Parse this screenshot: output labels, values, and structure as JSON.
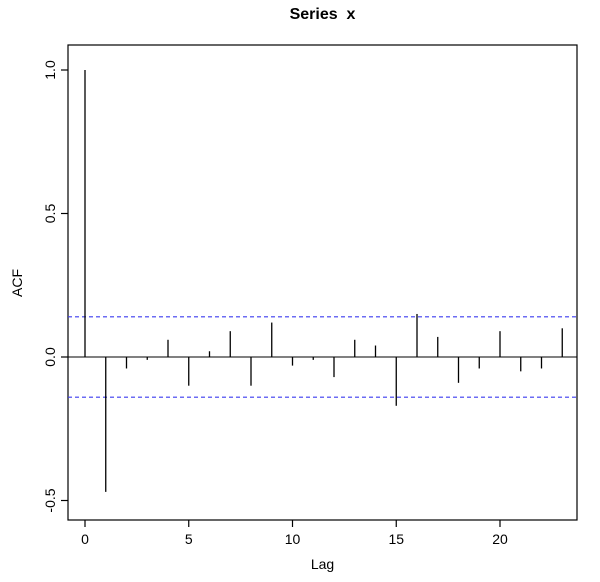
{
  "figure": {
    "background": "#ffffff",
    "title": "Series  x",
    "xlabel": "Lag",
    "ylabel": "ACF"
  },
  "chart_data": {
    "type": "bar",
    "subtype": "acf-stem-plot",
    "title": "Series  x",
    "xlabel": "Lag",
    "ylabel": "ACF",
    "x": [
      0,
      1,
      2,
      3,
      4,
      5,
      6,
      7,
      8,
      9,
      10,
      11,
      12,
      13,
      14,
      15,
      16,
      17,
      18,
      19,
      20,
      21,
      22,
      23
    ],
    "values": [
      1.0,
      -0.47,
      -0.04,
      -0.01,
      0.06,
      -0.1,
      0.02,
      0.09,
      -0.1,
      0.12,
      -0.03,
      -0.01,
      -0.07,
      0.06,
      0.04,
      -0.17,
      0.15,
      0.07,
      -0.09,
      -0.04,
      0.09,
      -0.05,
      -0.04,
      0.1
    ],
    "confidence_bounds": [
      0.14,
      -0.14
    ],
    "confidence_color": "#3b3bef",
    "stem_color": "#000000",
    "xticks": [
      0,
      5,
      10,
      15,
      20
    ],
    "yticks": [
      -0.5,
      0.0,
      0.5,
      1.0
    ],
    "xlim": [
      -0.85,
      23.85
    ],
    "ylim": [
      -0.5,
      1.0
    ],
    "grid": false,
    "legend": null
  }
}
